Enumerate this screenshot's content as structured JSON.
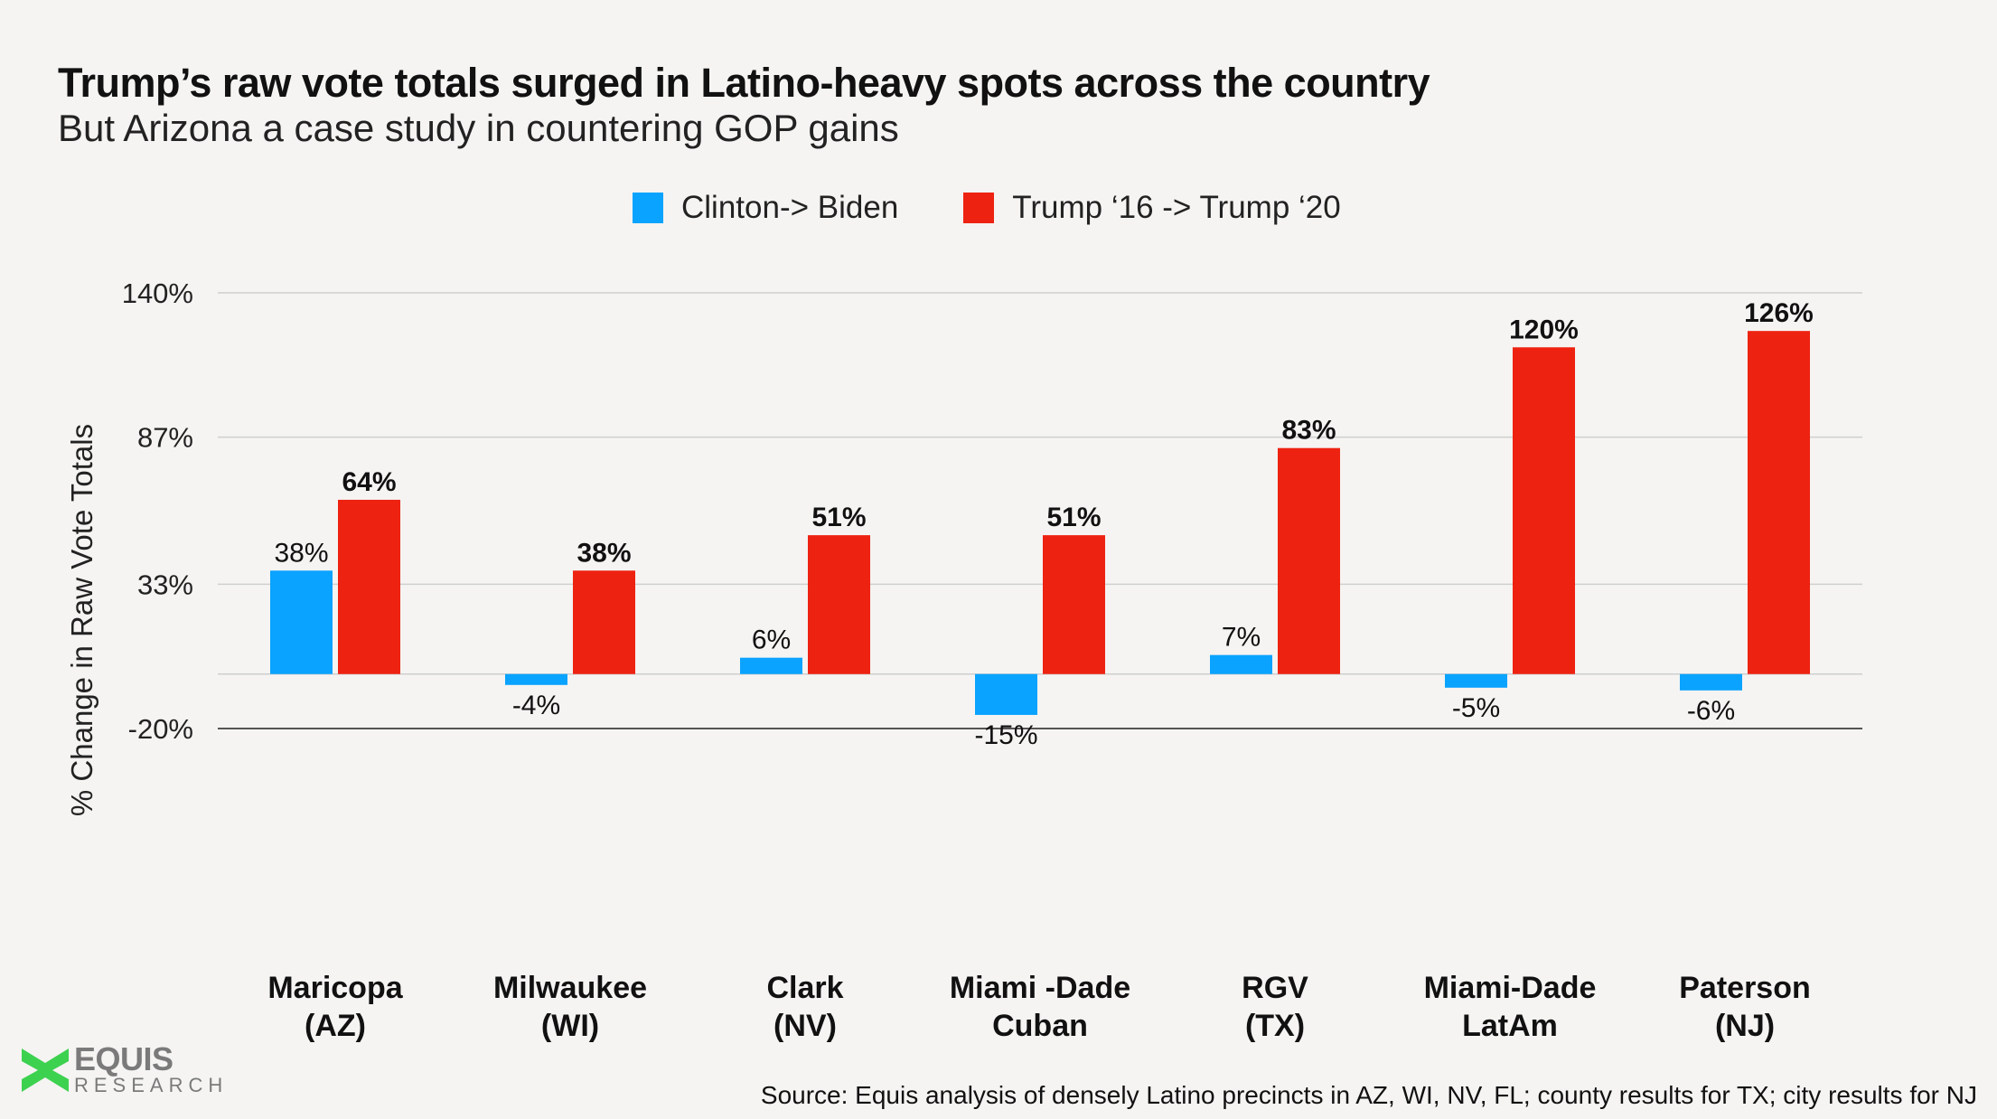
{
  "chart_data": {
    "type": "bar",
    "title": "Trump’s raw vote totals surged in Latino-heavy spots across the country",
    "subtitle": "But Arizona a case study in countering GOP gains",
    "xlabel": "",
    "ylabel": "% Change in Raw Vote Totals",
    "ylim": [
      -20,
      140
    ],
    "yticks": [
      -20,
      33,
      87,
      140
    ],
    "ytick_labels": [
      "-20%",
      "33%",
      "87%",
      "140%"
    ],
    "grid": true,
    "legend_position": "top-center",
    "categories": [
      [
        "Maricopa",
        "(AZ)"
      ],
      [
        "Milwaukee",
        "(WI)"
      ],
      [
        "Clark",
        "(NV)"
      ],
      [
        "Miami -Dade",
        "Cuban"
      ],
      [
        "RGV",
        "(TX)"
      ],
      [
        "Miami-Dade",
        "LatAm"
      ],
      [
        "Paterson",
        "(NJ)"
      ]
    ],
    "series": [
      {
        "name": "Clinton-> Biden",
        "color": "#0aa3ff",
        "values": [
          38,
          -4,
          6,
          -15,
          7,
          -5,
          -6
        ],
        "labels": [
          "38%",
          "-4%",
          "6%",
          "-15%",
          "7%",
          "-5%",
          "-6%"
        ]
      },
      {
        "name": "Trump ‘16 -> Trump ‘20",
        "color": "#ee2211",
        "values": [
          64,
          38,
          51,
          51,
          83,
          120,
          126
        ],
        "labels": [
          "64%",
          "38%",
          "51%",
          "51%",
          "83%",
          "120%",
          "126%"
        ]
      }
    ]
  },
  "logo": {
    "main": "EQUIS",
    "sub": "RESEARCH",
    "color": "#3dd150"
  },
  "source": "Source: Equis analysis of densely Latino precincts in AZ, WI, NV, FL; county results for TX; city results for NJ"
}
